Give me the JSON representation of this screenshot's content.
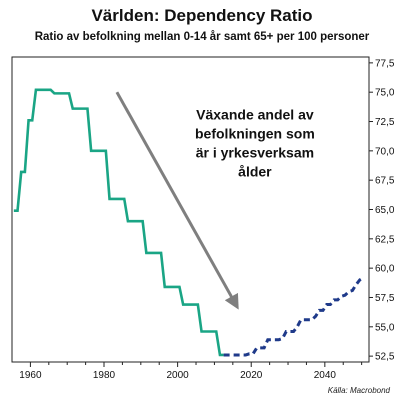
{
  "header": {
    "title": "Världen: Dependency Ratio",
    "subtitle": "Ratio av befolkning mellan 0-14 år samt 65+ per 100 personer"
  },
  "footer": {
    "source": "Källa: Macrobond"
  },
  "chart_data": {
    "type": "line",
    "title": "Världen: Dependency Ratio",
    "subtitle": "Ratio av befolkning mellan 0-14 år samt 65+ per 100 personer",
    "xlim": [
      1955,
      2052
    ],
    "ylim": [
      52.0,
      78.0
    ],
    "x_ticks": [
      1960,
      1980,
      2000,
      2020,
      2040
    ],
    "y_ticks": [
      52.5,
      55.0,
      57.5,
      60.0,
      62.5,
      65.0,
      67.5,
      70.0,
      72.5,
      75.0,
      77.5
    ],
    "y_tick_labels": [
      "52,5",
      "55,0",
      "57,5",
      "60,0",
      "62,5",
      "65,0",
      "67,5",
      "70,0",
      "72,5",
      "75,0",
      "77,5"
    ],
    "y_axis_side": "right",
    "grid": false,
    "series": [
      {
        "style": "solid",
        "color": "#1aa585",
        "x": [
          1955.5,
          1956.5,
          1957.5,
          1958.5,
          1959.5,
          1960.5,
          1961.5,
          1962.5,
          1963.5,
          1964.5,
          1965.5,
          1966.5,
          1967.5,
          1968.5,
          1969.5,
          1970.5,
          1971.5,
          1972.5,
          1973.5,
          1974.5,
          1975.5,
          1976.5,
          1977.5,
          1978.5,
          1979.5,
          1980.5,
          1981.5,
          1982.5,
          1983.5,
          1984.5,
          1985.5,
          1986.5,
          1987.5,
          1988.5,
          1989.5,
          1990.5,
          1991.5,
          1992.5,
          1993.5,
          1994.5,
          1995.5,
          1996.5,
          1997.5,
          1998.5,
          1999.5,
          2000.5,
          2001.5,
          2002.5,
          2003.5,
          2004.5,
          2005.5,
          2006.5,
          2007.5,
          2008.5,
          2009.5,
          2010.5,
          2011.5,
          2012.5
        ],
        "y": [
          64.9,
          64.9,
          68.2,
          68.2,
          72.6,
          72.6,
          75.2,
          75.2,
          75.2,
          75.2,
          75.2,
          74.9,
          74.9,
          74.9,
          74.9,
          74.9,
          73.6,
          73.6,
          73.6,
          73.6,
          73.6,
          70.0,
          70.0,
          70.0,
          70.0,
          70.0,
          65.9,
          65.9,
          65.9,
          65.9,
          65.9,
          64.0,
          64.0,
          64.0,
          64.0,
          64.0,
          61.3,
          61.3,
          61.3,
          61.3,
          61.3,
          58.4,
          58.4,
          58.4,
          58.4,
          58.4,
          56.9,
          56.9,
          56.9,
          56.9,
          56.9,
          54.6,
          54.6,
          54.6,
          54.6,
          54.6,
          52.6,
          52.6
        ]
      },
      {
        "style": "dashed",
        "color": "#1f3a8a",
        "x": [
          2012.5,
          2013.5,
          2014.5,
          2015.5,
          2016.5,
          2017.5,
          2018.5,
          2019.5,
          2020.5,
          2021.5,
          2022.5,
          2023.5,
          2024.5,
          2025.5,
          2026.5,
          2027.5,
          2028.5,
          2029.5,
          2030.5,
          2031.5,
          2032.5,
          2033.5,
          2034.5,
          2035.5,
          2036.5,
          2037.5,
          2038.5,
          2039.5,
          2040.5,
          2041.5,
          2042.5,
          2043.5,
          2044.5,
          2045.5,
          2046.5,
          2047.5,
          2048.5,
          2049.5,
          2050.5
        ],
        "y": [
          52.6,
          52.6,
          52.6,
          52.6,
          52.6,
          52.6,
          52.6,
          52.7,
          52.7,
          53.2,
          53.2,
          53.2,
          53.9,
          53.9,
          53.9,
          53.9,
          54.0,
          54.6,
          54.6,
          54.6,
          55.0,
          55.6,
          55.6,
          55.6,
          55.6,
          55.9,
          56.4,
          56.4,
          56.9,
          56.9,
          57.3,
          57.3,
          57.6,
          57.7,
          58.0,
          58.1,
          58.6,
          59.0,
          59.2
        ]
      }
    ],
    "annotations": [
      {
        "text_lines": [
          "Växande andel av",
          "befolkningen som",
          "är i yrkesverksam",
          "ålder"
        ],
        "x": 2021,
        "y": 72.5
      }
    ],
    "arrow": {
      "color": "#7f7f7f",
      "from": [
        1983.5,
        75.0
      ],
      "to": [
        2016,
        56.8
      ]
    }
  }
}
